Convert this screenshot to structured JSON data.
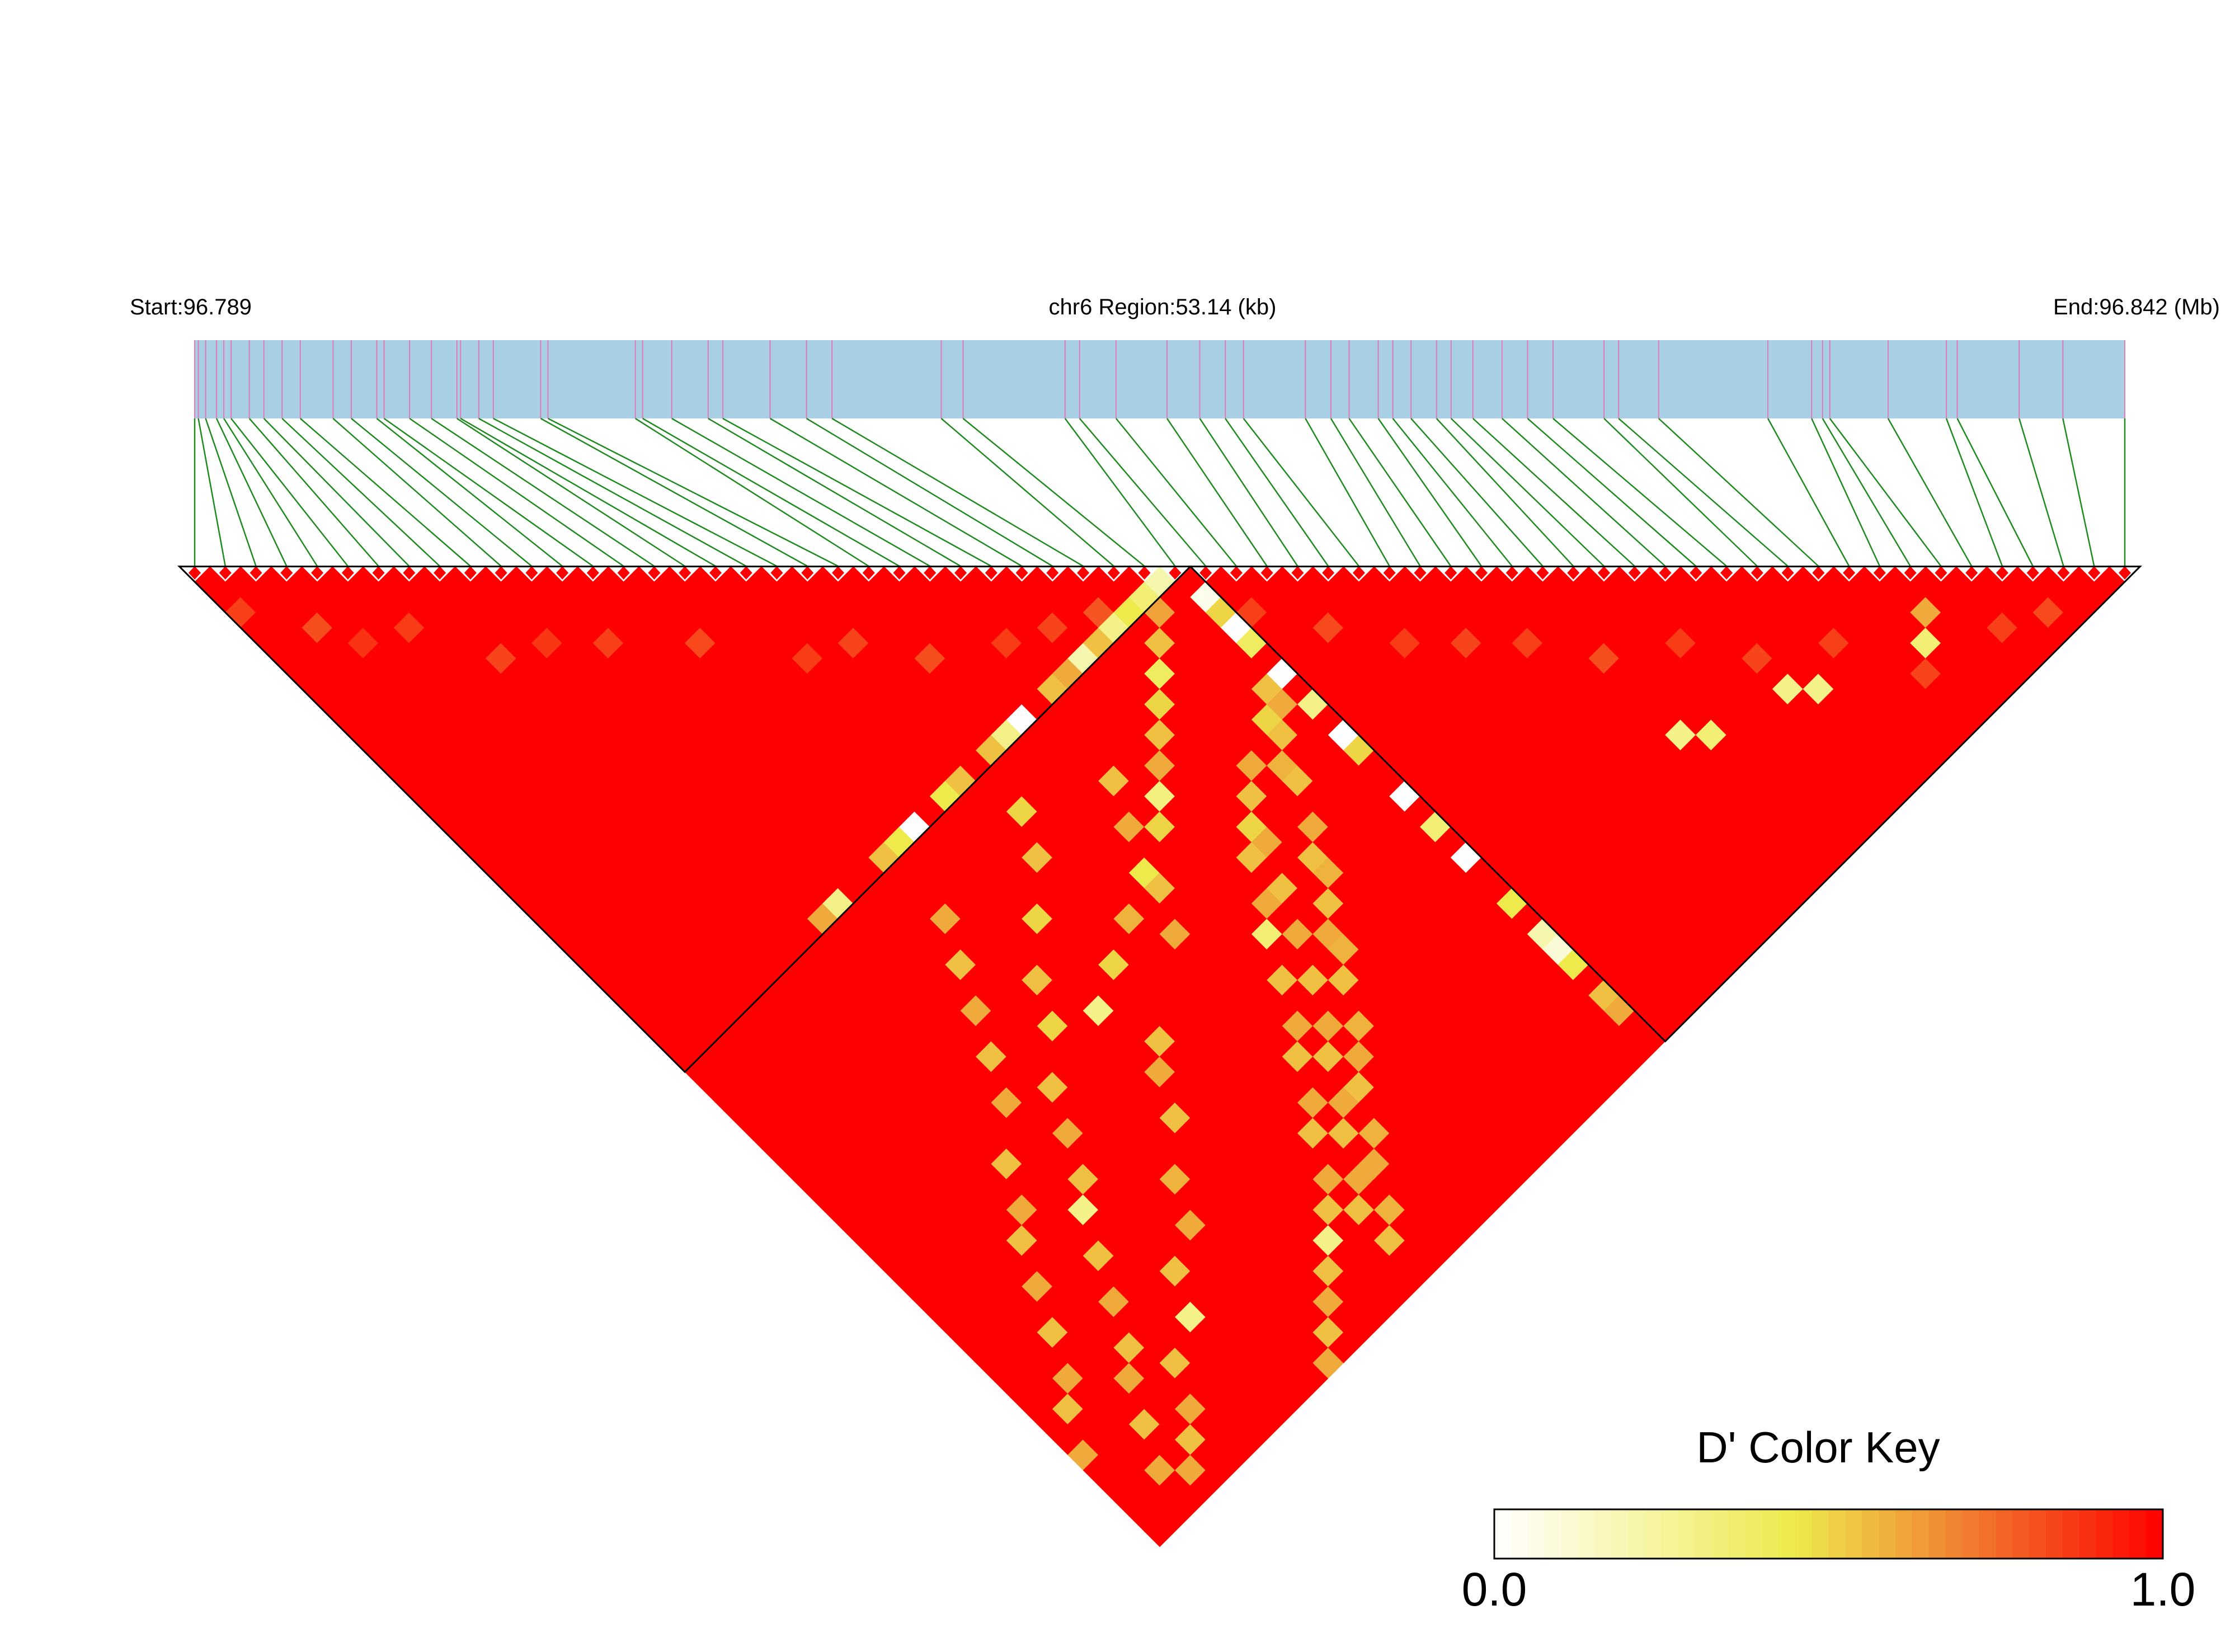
{
  "chart_data": {
    "type": "heatmap",
    "subtype": "ld-triangle",
    "header": {
      "start_label": "Start:96.789",
      "region_label": "chr6 Region:53.14 (kb)",
      "end_label": "End:96.842 (Mb)"
    },
    "chromosome": "chr6",
    "region_kb": 53.14,
    "start_mb": 96.789,
    "end_mb": 96.842,
    "snp_count": 64,
    "snp_positions_mb": [
      96.789,
      96.7891,
      96.7893,
      96.7896,
      96.7898,
      96.79,
      96.7905,
      96.7909,
      96.7914,
      96.7919,
      96.7928,
      96.7933,
      96.794,
      96.7942,
      96.7949,
      96.7955,
      96.7962,
      96.7963,
      96.7968,
      96.7972,
      96.7985,
      96.7987,
      96.8011,
      96.8013,
      96.8021,
      96.8031,
      96.8035,
      96.8048,
      96.8058,
      96.8065,
      96.8095,
      96.8101,
      96.8129,
      96.8133,
      96.8143,
      96.8157,
      96.8166,
      96.8173,
      96.8178,
      96.8195,
      96.8202,
      96.8207,
      96.8215,
      96.8219,
      96.8224,
      96.8231,
      96.8235,
      96.8241,
      96.8249,
      96.8256,
      96.8263,
      96.8277,
      96.8281,
      96.8292,
      96.8322,
      96.8334,
      96.8337,
      96.8339,
      96.8355,
      96.8371,
      96.8374,
      96.8391,
      96.8403,
      96.842
    ],
    "ld_blocks": [
      {
        "first_snp": 1,
        "last_snp": 33
      },
      {
        "first_snp": 34,
        "last_snp": 64
      }
    ],
    "ld_metric": "D'",
    "ld_value_default": 1.0,
    "ld_values_below_one": [
      {
        "i": 1,
        "j": 4,
        "d": 0.85
      },
      {
        "i": 3,
        "j": 7,
        "d": 0.82
      },
      {
        "i": 4,
        "j": 9,
        "d": 0.88
      },
      {
        "i": 6,
        "j": 10,
        "d": 0.86
      },
      {
        "i": 8,
        "j": 14,
        "d": 0.84
      },
      {
        "i": 10,
        "j": 15,
        "d": 0.87
      },
      {
        "i": 12,
        "j": 17,
        "d": 0.85
      },
      {
        "i": 15,
        "j": 20,
        "d": 0.83
      },
      {
        "i": 18,
        "j": 24,
        "d": 0.86
      },
      {
        "i": 20,
        "j": 25,
        "d": 0.84
      },
      {
        "i": 22,
        "j": 28,
        "d": 0.82
      },
      {
        "i": 25,
        "j": 30,
        "d": 0.86
      },
      {
        "i": 27,
        "j": 31,
        "d": 0.84
      },
      {
        "i": 29,
        "j": 32,
        "d": 0.8
      },
      {
        "i": 31,
        "j": 34,
        "d": 0.62
      },
      {
        "i": 30,
        "j": 35,
        "d": 0.55
      },
      {
        "i": 29,
        "j": 36,
        "d": 0.4
      },
      {
        "i": 28,
        "j": 37,
        "d": 0.5
      },
      {
        "i": 27,
        "j": 38,
        "d": 0.55
      },
      {
        "i": 26,
        "j": 39,
        "d": 0.6
      },
      {
        "i": 25,
        "j": 40,
        "d": 0.32
      },
      {
        "i": 24,
        "j": 41,
        "d": 0.5
      },
      {
        "i": 22,
        "j": 42,
        "d": 0.45
      },
      {
        "i": 20,
        "j": 43,
        "d": 0.58
      },
      {
        "i": 18,
        "j": 44,
        "d": 0.5
      },
      {
        "i": 16,
        "j": 45,
        "d": 0.3
      },
      {
        "i": 32,
        "j": 33,
        "d": 0.2
      },
      {
        "i": 31,
        "j": 33,
        "d": 0.35
      },
      {
        "i": 30,
        "j": 33,
        "d": 0.45
      },
      {
        "i": 29,
        "j": 33,
        "d": 0.3
      },
      {
        "i": 28,
        "j": 33,
        "d": 0.55
      },
      {
        "i": 27,
        "j": 33,
        "d": 0.2
      },
      {
        "i": 26,
        "j": 33,
        "d": 0.6
      },
      {
        "i": 25,
        "j": 33,
        "d": 0.55
      },
      {
        "i": 23,
        "j": 33,
        "d": 0.0
      },
      {
        "i": 22,
        "j": 33,
        "d": 0.3
      },
      {
        "i": 21,
        "j": 33,
        "d": 0.55
      },
      {
        "i": 19,
        "j": 33,
        "d": 0.55
      },
      {
        "i": 18,
        "j": 33,
        "d": 0.45
      },
      {
        "i": 16,
        "j": 33,
        "d": 0.0
      },
      {
        "i": 15,
        "j": 33,
        "d": 0.45
      },
      {
        "i": 14,
        "j": 33,
        "d": 0.55
      },
      {
        "i": 11,
        "j": 33,
        "d": 0.3
      },
      {
        "i": 10,
        "j": 33,
        "d": 0.6
      },
      {
        "i": 33,
        "j": 35,
        "d": 0.05
      },
      {
        "i": 33,
        "j": 36,
        "d": 0.5
      },
      {
        "i": 33,
        "j": 37,
        "d": 0.0
      },
      {
        "i": 33,
        "j": 38,
        "d": 0.4
      },
      {
        "i": 33,
        "j": 40,
        "d": 0.0
      },
      {
        "i": 33,
        "j": 42,
        "d": 0.3
      },
      {
        "i": 33,
        "j": 44,
        "d": 0.0
      },
      {
        "i": 33,
        "j": 45,
        "d": 0.5
      },
      {
        "i": 33,
        "j": 48,
        "d": 0.0
      },
      {
        "i": 33,
        "j": 50,
        "d": 0.35
      },
      {
        "i": 33,
        "j": 52,
        "d": 0.0
      },
      {
        "i": 33,
        "j": 55,
        "d": 0.45
      },
      {
        "i": 33,
        "j": 57,
        "d": 0.2
      },
      {
        "i": 33,
        "j": 58,
        "d": 0.1
      },
      {
        "i": 33,
        "j": 59,
        "d": 0.45
      },
      {
        "i": 33,
        "j": 61,
        "d": 0.55
      },
      {
        "i": 33,
        "j": 62,
        "d": 0.6
      },
      {
        "i": 32,
        "j": 40,
        "d": 0.55
      },
      {
        "i": 32,
        "j": 41,
        "d": 0.6
      },
      {
        "i": 31,
        "j": 41,
        "d": 0.5
      },
      {
        "i": 31,
        "j": 42,
        "d": 0.55
      },
      {
        "i": 30,
        "j": 43,
        "d": 0.58
      },
      {
        "i": 30,
        "j": 44,
        "d": 0.55
      },
      {
        "i": 29,
        "j": 46,
        "d": 0.6
      },
      {
        "i": 28,
        "j": 47,
        "d": 0.55
      },
      {
        "i": 28,
        "j": 48,
        "d": 0.58
      },
      {
        "i": 27,
        "j": 49,
        "d": 0.55
      },
      {
        "i": 26,
        "j": 50,
        "d": 0.6
      },
      {
        "i": 26,
        "j": 51,
        "d": 0.58
      },
      {
        "i": 25,
        "j": 52,
        "d": 0.55
      },
      {
        "i": 24,
        "j": 54,
        "d": 0.58
      },
      {
        "i": 23,
        "j": 55,
        "d": 0.6
      },
      {
        "i": 22,
        "j": 56,
        "d": 0.55
      },
      {
        "i": 21,
        "j": 58,
        "d": 0.58
      },
      {
        "i": 20,
        "j": 59,
        "d": 0.6
      },
      {
        "i": 19,
        "j": 61,
        "d": 0.58
      },
      {
        "i": 18,
        "j": 62,
        "d": 0.55
      },
      {
        "i": 20,
        "j": 36,
        "d": 0.5
      },
      {
        "i": 19,
        "j": 38,
        "d": 0.55
      },
      {
        "i": 17,
        "j": 40,
        "d": 0.5
      },
      {
        "i": 15,
        "j": 42,
        "d": 0.55
      },
      {
        "i": 14,
        "j": 44,
        "d": 0.5
      },
      {
        "i": 12,
        "j": 46,
        "d": 0.55
      },
      {
        "i": 11,
        "j": 48,
        "d": 0.6
      },
      {
        "i": 10,
        "j": 50,
        "d": 0.55
      },
      {
        "i": 9,
        "j": 51,
        "d": 0.3
      },
      {
        "i": 8,
        "j": 53,
        "d": 0.55
      },
      {
        "i": 7,
        "j": 55,
        "d": 0.6
      },
      {
        "i": 6,
        "j": 57,
        "d": 0.55
      },
      {
        "i": 5,
        "j": 58,
        "d": 0.6
      },
      {
        "i": 4,
        "j": 60,
        "d": 0.55
      },
      {
        "i": 3,
        "j": 62,
        "d": 0.6
      },
      {
        "i": 24,
        "j": 38,
        "d": 0.55
      },
      {
        "i": 23,
        "j": 40,
        "d": 0.6
      },
      {
        "i": 22,
        "j": 43,
        "d": 0.55
      },
      {
        "i": 21,
        "j": 45,
        "d": 0.6
      },
      {
        "i": 17,
        "j": 48,
        "d": 0.55
      },
      {
        "i": 16,
        "j": 49,
        "d": 0.6
      },
      {
        "i": 15,
        "j": 51,
        "d": 0.55
      },
      {
        "i": 13,
        "j": 53,
        "d": 0.58
      },
      {
        "i": 12,
        "j": 55,
        "d": 0.6
      },
      {
        "i": 10,
        "j": 56,
        "d": 0.55
      },
      {
        "i": 9,
        "j": 58,
        "d": 0.3
      },
      {
        "i": 7,
        "j": 59,
        "d": 0.55
      },
      {
        "i": 6,
        "j": 61,
        "d": 0.6
      },
      {
        "i": 5,
        "j": 62,
        "d": 0.55
      },
      {
        "i": 4,
        "j": 63,
        "d": 0.6
      },
      {
        "i": 27,
        "j": 44,
        "d": 0.5
      },
      {
        "i": 26,
        "j": 45,
        "d": 0.55
      },
      {
        "i": 25,
        "j": 47,
        "d": 0.6
      },
      {
        "i": 24,
        "j": 48,
        "d": 0.35
      },
      {
        "i": 23,
        "j": 50,
        "d": 0.55
      },
      {
        "i": 22,
        "j": 52,
        "d": 0.6
      },
      {
        "i": 21,
        "j": 53,
        "d": 0.55
      },
      {
        "i": 20,
        "j": 55,
        "d": 0.6
      },
      {
        "i": 19,
        "j": 56,
        "d": 0.55
      },
      {
        "i": 18,
        "j": 58,
        "d": 0.6
      },
      {
        "i": 17,
        "j": 59,
        "d": 0.55
      },
      {
        "i": 16,
        "j": 60,
        "d": 0.3
      },
      {
        "i": 15,
        "j": 61,
        "d": 0.55
      },
      {
        "i": 14,
        "j": 62,
        "d": 0.6
      },
      {
        "i": 13,
        "j": 63,
        "d": 0.55
      },
      {
        "i": 12,
        "j": 64,
        "d": 0.6
      },
      {
        "i": 29,
        "j": 42,
        "d": 0.6
      },
      {
        "i": 28,
        "j": 43,
        "d": 0.55
      },
      {
        "i": 27,
        "j": 45,
        "d": 0.6
      },
      {
        "i": 26,
        "j": 47,
        "d": 0.55
      },
      {
        "i": 25,
        "j": 49,
        "d": 0.6
      },
      {
        "i": 24,
        "j": 51,
        "d": 0.55
      },
      {
        "i": 23,
        "j": 53,
        "d": 0.6
      },
      {
        "i": 22,
        "j": 54,
        "d": 0.55
      },
      {
        "i": 21,
        "j": 56,
        "d": 0.6
      },
      {
        "i": 20,
        "j": 57,
        "d": 0.55
      },
      {
        "i": 19,
        "j": 59,
        "d": 0.6
      },
      {
        "i": 18,
        "j": 60,
        "d": 0.55
      },
      {
        "i": 14,
        "j": 37,
        "d": 0.6
      },
      {
        "i": 13,
        "j": 39,
        "d": 0.55
      },
      {
        "i": 12,
        "j": 41,
        "d": 0.6
      },
      {
        "i": 11,
        "j": 43,
        "d": 0.55
      },
      {
        "i": 10,
        "j": 45,
        "d": 0.6
      },
      {
        "i": 8,
        "j": 47,
        "d": 0.55
      },
      {
        "i": 7,
        "j": 49,
        "d": 0.6
      },
      {
        "i": 6,
        "j": 50,
        "d": 0.55
      },
      {
        "i": 5,
        "j": 52,
        "d": 0.6
      },
      {
        "i": 4,
        "j": 54,
        "d": 0.55
      },
      {
        "i": 3,
        "j": 56,
        "d": 0.6
      },
      {
        "i": 2,
        "j": 57,
        "d": 0.55
      },
      {
        "i": 1,
        "j": 59,
        "d": 0.6
      },
      {
        "i": 34,
        "j": 37,
        "d": 0.85
      },
      {
        "i": 36,
        "j": 40,
        "d": 0.83
      },
      {
        "i": 38,
        "j": 43,
        "d": 0.86
      },
      {
        "i": 40,
        "j": 45,
        "d": 0.84
      },
      {
        "i": 42,
        "j": 47,
        "d": 0.85
      },
      {
        "i": 44,
        "j": 50,
        "d": 0.82
      },
      {
        "i": 47,
        "j": 52,
        "d": 0.86
      },
      {
        "i": 49,
        "j": 55,
        "d": 0.84
      },
      {
        "i": 52,
        "j": 57,
        "d": 0.85
      },
      {
        "i": 54,
        "j": 61,
        "d": 0.84
      },
      {
        "i": 56,
        "j": 59,
        "d": 0.6
      },
      {
        "i": 55,
        "j": 60,
        "d": 0.35
      },
      {
        "i": 50,
        "j": 58,
        "d": 0.3
      },
      {
        "i": 49,
        "j": 57,
        "d": 0.3
      },
      {
        "i": 45,
        "j": 56,
        "d": 0.35
      },
      {
        "i": 44,
        "j": 55,
        "d": 0.3
      },
      {
        "i": 58,
        "j": 62,
        "d": 0.85
      },
      {
        "i": 60,
        "j": 63,
        "d": 0.83
      }
    ],
    "color_key": {
      "title": "D' Color Key",
      "min_label": "0.0",
      "max_label": "1.0",
      "range": [
        0.0,
        1.0
      ],
      "gradient_colors": [
        "#ffffff",
        "#eeea4c",
        "#f08030",
        "#ff0000"
      ],
      "gradient_stops": [
        0.0,
        0.45,
        0.7,
        1.0
      ]
    },
    "colors": {
      "gene_track": "#a8cfe3",
      "snp_tick": "#e07ab8",
      "snp_line": "#1f8a1f",
      "block_outline": "#000000",
      "marker": "#ff0000"
    }
  }
}
